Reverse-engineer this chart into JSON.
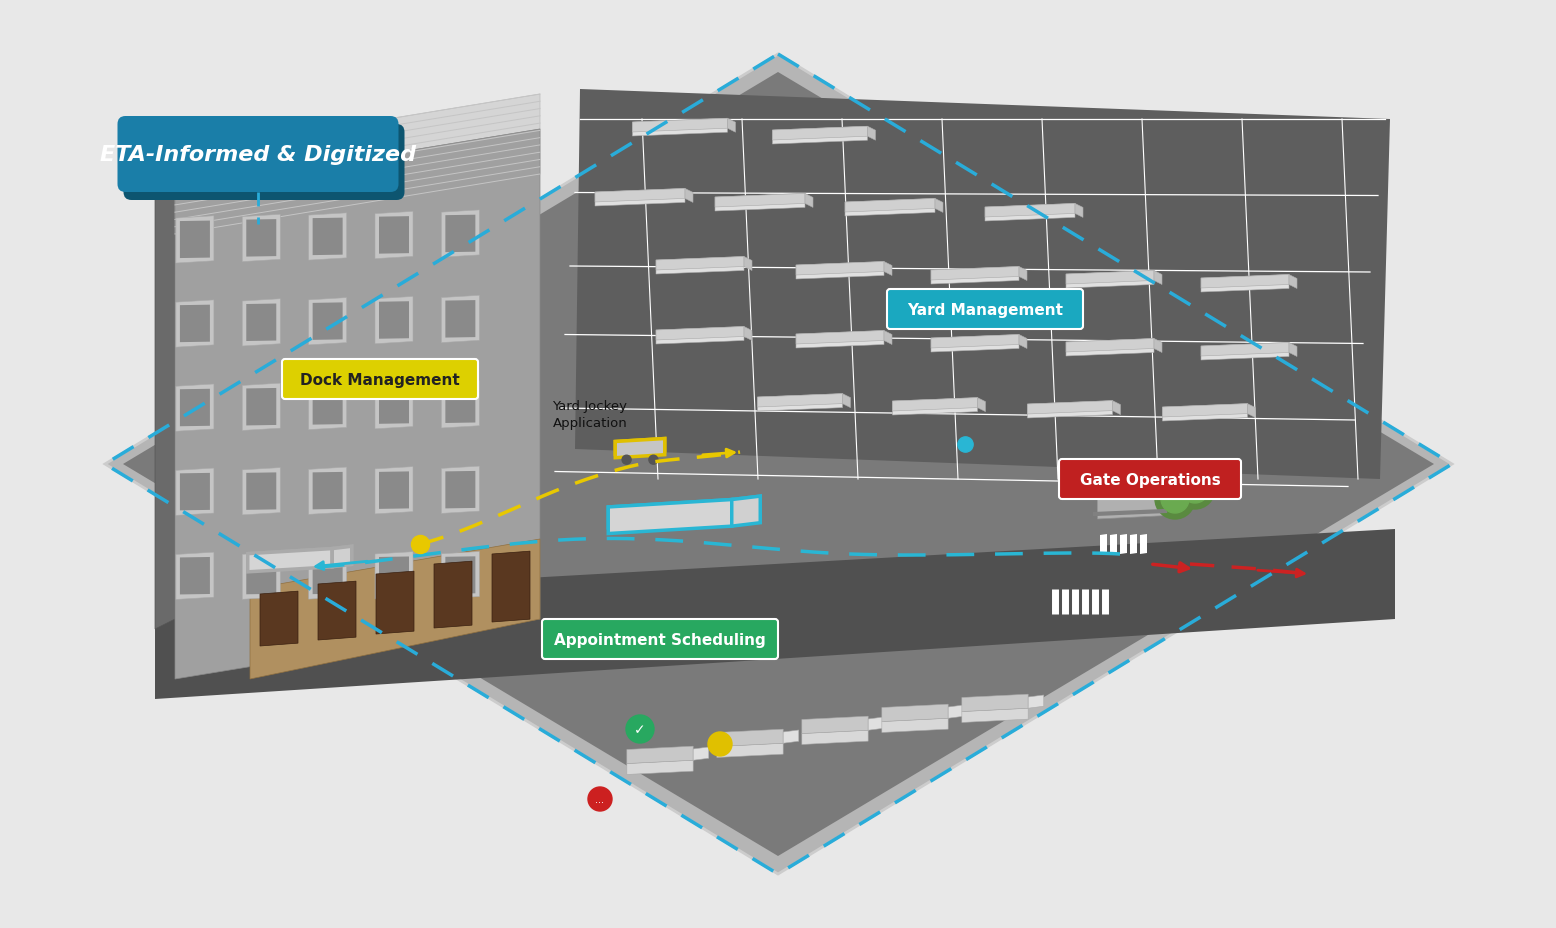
{
  "bg_color": "#e8e8e8",
  "title": "ETA-Informed & Digitized",
  "title_bg": "#1a7ea8",
  "title_bg_dark": "#0d5570",
  "labels": {
    "yard_management": "Yard Management",
    "dock_management": "Dock Management",
    "gate_operations": "Gate Operations",
    "appointment_scheduling": "Appointment Scheduling",
    "yard_jockey": "Yard Jockey\nApplication"
  },
  "dashed_border_color": "#29acd9",
  "yellow_path_color": "#e8c800",
  "blue_path_color": "#29b6d4",
  "red_path_color": "#cc2222",
  "ground_light": "#8a8a8a",
  "ground_dark": "#5c5c5c",
  "parking_ground": "#5e5e5e",
  "road_color": "#4a4a4a",
  "building_roof_top": "#d0d0d0",
  "building_roof_mid": "#b8b8b8",
  "building_wall_light": "#a8a8a8",
  "building_wall_dark": "#787878",
  "building_left": "#909090",
  "dock_floor": "#b8a060",
  "dock_door": "#6b4c30",
  "trailer_top": "#e0e0e0",
  "trailer_side": "#c8c8c8",
  "trailer_front": "#d8d8d8",
  "gate_roof": "#c0c0c0",
  "gate_wall": "#a8a8a8",
  "diamond_border": "#c8c8c8",
  "diamond_inner": "#888888",
  "diamond_outer_light": "#b0b0b0",
  "ym_color": "#1aa8c0",
  "dm_color": "#ddd000",
  "go_color": "#c02020",
  "as_color": "#28a860"
}
